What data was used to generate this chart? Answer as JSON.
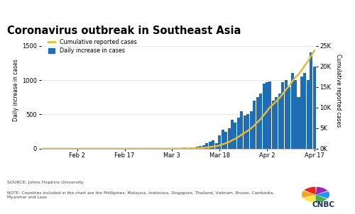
{
  "title": "Coronavirus outbreak in Southeast Asia",
  "left_ylabel": "Daily increase in cases",
  "right_ylabel": "Cumulative reported cases",
  "source_text": "SOURCE: Johns Hopkins University",
  "note_text": "NOTE: Countries included in the chart are the Phillipines, Malaysia, Indonosia, Singapore, Thailand, Vietnam, Brunei, Cambodia,\nMyanmar and Laos",
  "legend_line": "Cumulative reported cases",
  "legend_bar": "Daily increase in cases",
  "bar_color": "#1f6eb5",
  "line_color": "#e8b931",
  "background_color": "#ffffff",
  "header_color": "#1a2f5a",
  "left_ylim": [
    0,
    1700
  ],
  "right_ylim": [
    0,
    28333
  ],
  "left_yticks": [
    0,
    500,
    1000,
    1500
  ],
  "right_yticks": [
    0,
    5000,
    10000,
    15000,
    20000,
    25000
  ],
  "right_yticklabels": [
    "0K",
    "5K",
    "10K",
    "15K",
    "20K",
    "25K"
  ],
  "xtick_labels": [
    "Feb 2",
    "Feb 17",
    "Mar 3",
    "Mar 18",
    "Apr 2",
    "Apr 17"
  ],
  "daily_cases": [
    2,
    1,
    3,
    1,
    2,
    1,
    1,
    1,
    1,
    0,
    1,
    0,
    1,
    0,
    0,
    0,
    0,
    1,
    0,
    0,
    0,
    0,
    1,
    0,
    0,
    0,
    0,
    2,
    0,
    0,
    0,
    0,
    0,
    1,
    0,
    1,
    0,
    1,
    1,
    2,
    3,
    4,
    5,
    3,
    6,
    15,
    10,
    20,
    15,
    30,
    40,
    50,
    80,
    100,
    120,
    80,
    200,
    280,
    250,
    300,
    420,
    380,
    450,
    550,
    480,
    500,
    550,
    700,
    750,
    800,
    950,
    970,
    980,
    700,
    750,
    800,
    970,
    1000,
    900,
    1100,
    1000,
    750,
    1050,
    1100,
    1000,
    1400,
    1200
  ],
  "cumulative_cases": [
    2,
    3,
    6,
    7,
    9,
    10,
    11,
    12,
    13,
    13,
    14,
    14,
    15,
    15,
    15,
    15,
    15,
    16,
    16,
    16,
    16,
    16,
    17,
    17,
    17,
    17,
    17,
    19,
    19,
    19,
    19,
    19,
    19,
    20,
    20,
    21,
    21,
    22,
    23,
    25,
    28,
    32,
    37,
    40,
    46,
    61,
    71,
    91,
    106,
    136,
    176,
    226,
    306,
    406,
    526,
    606,
    806,
    1086,
    1336,
    1636,
    2056,
    2436,
    2886,
    3436,
    3916,
    4416,
    4966,
    5666,
    6416,
    7216,
    8166,
    9136,
    10116,
    10816,
    11566,
    12366,
    13336,
    14336,
    15236,
    16336,
    17336,
    18086,
    19136,
    20236,
    21236,
    22636,
    23836
  ],
  "xtick_positions": [
    11,
    26,
    41,
    56,
    71,
    86
  ]
}
